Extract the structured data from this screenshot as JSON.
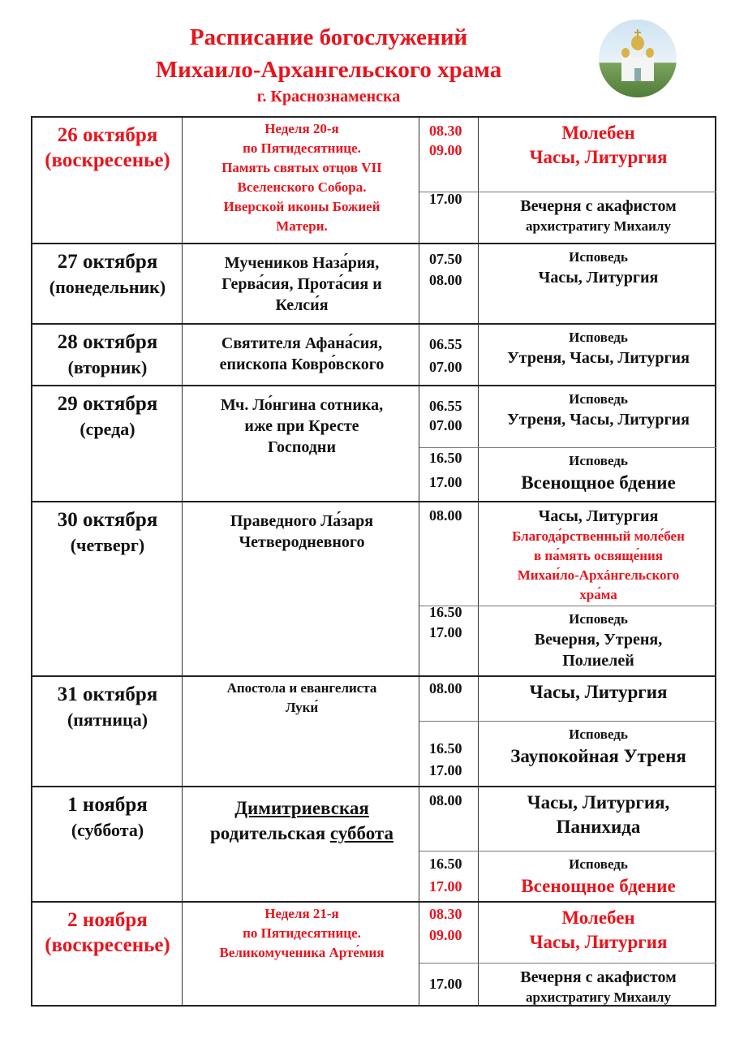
{
  "header": {
    "title_line1": "Расписание богослужений",
    "title_line2": "Михаило-Архангельского храма",
    "subtitle": "г. Краснознаменска",
    "accent_color": "#e8141c",
    "image": "church-photo"
  },
  "days": [
    {
      "date": "26 октября",
      "weekday": "(воскресенье)",
      "red": true,
      "feast": [
        [
          "Неделя 20-я"
        ],
        [
          "по Пятидесятнице."
        ],
        [
          "Память святых отцов VII"
        ],
        [
          "Вселенского Собора."
        ],
        [
          "Иверской иконы Божией"
        ],
        [
          "Матери."
        ]
      ],
      "feast_small": true,
      "services": [
        {
          "times": [
            {
              "t": "08.30",
              "red": true
            },
            {
              "t": "09.00",
              "red": true
            }
          ],
          "lines": [
            {
              "t": "Молебен",
              "red": true,
              "size": "big"
            },
            {
              "t": "Часы, Литургия",
              "red": true,
              "size": "big"
            }
          ]
        },
        {
          "times": [
            {
              "t": "17.00"
            }
          ],
          "lines": [
            {
              "t": "Вечерня с акафистом",
              "size": "med"
            },
            {
              "t": "архистратигу Михаилу",
              "size": "sm"
            }
          ]
        }
      ]
    },
    {
      "date": "27 октября",
      "weekday": "(понедельник)",
      "feast": [
        [
          "Мучеников Наза́рия,"
        ],
        [
          "Герва́сия, Прота́сия и"
        ],
        [
          "Келси́я"
        ]
      ],
      "services": [
        {
          "times": [
            {
              "t": "07.50"
            },
            {
              "t": "08.00"
            }
          ],
          "lines": [
            {
              "t": "Исповедь",
              "size": "sm"
            },
            {
              "t": "Часы, Литургия",
              "size": "med"
            }
          ]
        }
      ]
    },
    {
      "date": "28 октября",
      "weekday": "(вторник)",
      "feast": [
        [
          "Святителя Афана́сия,"
        ],
        [
          "епископа Ковро́вского"
        ]
      ],
      "services": [
        {
          "times": [
            {
              "t": "06.55"
            },
            {
              "t": "07.00"
            }
          ],
          "lines": [
            {
              "t": "Исповедь",
              "size": "sm"
            },
            {
              "t": "Утреня, Часы, Литургия",
              "size": "med"
            }
          ]
        }
      ]
    },
    {
      "date": "29 октября",
      "weekday": "(среда)",
      "feast": [
        [
          "Мч. Ло́нгина сотника,"
        ],
        [
          "иже при Кресте"
        ],
        [
          "Господни"
        ]
      ],
      "services": [
        {
          "times": [
            {
              "t": "06.55"
            },
            {
              "t": "07.00"
            }
          ],
          "lines": [
            {
              "t": "Исповедь",
              "size": "sm"
            },
            {
              "t": "Утреня, Часы, Литургия",
              "size": "med"
            }
          ]
        },
        {
          "times": [
            {
              "t": "16.50"
            },
            {
              "t": "17.00"
            }
          ],
          "lines": [
            {
              "t": "Исповедь",
              "size": "sm"
            },
            {
              "t": "Всенощное бдение",
              "size": "big"
            }
          ]
        }
      ]
    },
    {
      "date": "30 октября",
      "weekday": "(четверг)",
      "feast": [
        [
          "Праведного Ла́заря"
        ],
        [
          "Четверодневного"
        ]
      ],
      "services": [
        {
          "times": [
            {
              "t": "08.00"
            }
          ],
          "lines": [
            {
              "t": "Часы, Литургия",
              "size": "med"
            },
            {
              "t": "Благода́рственный моле́бен",
              "red": true,
              "size": "sm"
            },
            {
              "t": "в па́мять освяще́ния",
              "red": true,
              "size": "sm"
            },
            {
              "t": "Михаи́ло-Архáнгельского",
              "red": true,
              "size": "sm"
            },
            {
              "t": "хра́ма",
              "red": true,
              "size": "sm"
            }
          ]
        },
        {
          "times": [
            {
              "t": "16.50"
            },
            {
              "t": "17.00"
            }
          ],
          "lines": [
            {
              "t": "Исповедь",
              "size": "sm"
            },
            {
              "t": "Вечерня, Утреня,",
              "size": "med"
            },
            {
              "t": "Полиелей",
              "size": "med"
            }
          ]
        }
      ]
    },
    {
      "date": "31 октября",
      "weekday": "(пятница)",
      "feast": [
        [
          "Апостола и евангелиста"
        ],
        [
          "Луки́"
        ]
      ],
      "feast_small": true,
      "services": [
        {
          "times": [
            {
              "t": "08.00"
            }
          ],
          "lines": [
            {
              "t": "Часы, Литургия",
              "size": "big"
            }
          ]
        },
        {
          "times": [
            {
              "t": "16.50"
            },
            {
              "t": "17.00"
            }
          ],
          "lines": [
            {
              "t": "Исповедь",
              "size": "sm"
            },
            {
              "t": "Заупокойная Утреня",
              "size": "big"
            }
          ]
        }
      ]
    },
    {
      "date": "1 ноября",
      "weekday": "(суббота)",
      "feast": [
        [
          {
            "t": "Димитриевская",
            "u": true
          }
        ],
        [
          {
            "t": "родительская "
          },
          {
            "t": "суббота",
            "u": true
          }
        ]
      ],
      "feast_large": true,
      "services": [
        {
          "times": [
            {
              "t": "08.00"
            }
          ],
          "lines": [
            {
              "t": "Часы, Литургия,",
              "size": "big"
            },
            {
              "t": "Панихида",
              "size": "big"
            }
          ]
        },
        {
          "times": [
            {
              "t": "16.50"
            },
            {
              "t": "17.00",
              "red": true
            }
          ],
          "lines": [
            {
              "t": "Исповедь",
              "size": "sm"
            },
            {
              "t": "Всенощное бдение",
              "red": true,
              "size": "big"
            }
          ]
        }
      ]
    },
    {
      "date": "2 ноября",
      "weekday": "(воскресенье)",
      "red": true,
      "feast": [
        [
          "Неделя 21-я"
        ],
        [
          "по Пятидесятнице."
        ],
        [
          "Великомученика Арте́мия"
        ]
      ],
      "feast_small": true,
      "services": [
        {
          "times": [
            {
              "t": "08.30",
              "red": true
            },
            {
              "t": "09.00",
              "red": true
            }
          ],
          "lines": [
            {
              "t": "Молебен",
              "red": true,
              "size": "big"
            },
            {
              "t": "Часы, Литургия",
              "red": true,
              "size": "big"
            }
          ]
        },
        {
          "times": [
            {
              "t": "17.00"
            }
          ],
          "lines": [
            {
              "t": "Вечерня с акафистом",
              "size": "med"
            },
            {
              "t": "архистратигу Михаилу",
              "size": "sm"
            }
          ]
        }
      ]
    }
  ]
}
